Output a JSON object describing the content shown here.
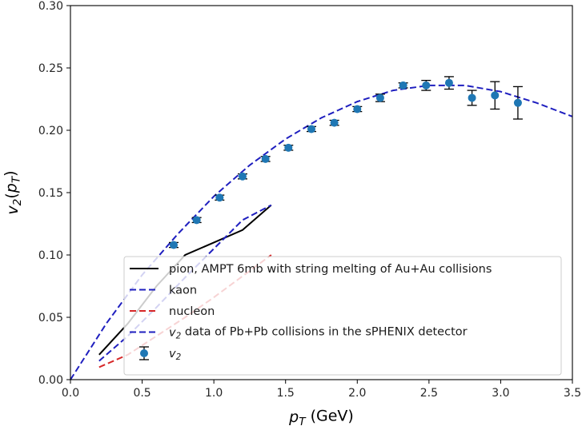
{
  "chart_data": {
    "type": "line",
    "xlabel": "p_T (GeV)",
    "ylabel": "v_2(p_T)",
    "xlim": [
      0.0,
      3.5
    ],
    "ylim": [
      0.0,
      0.3
    ],
    "xticks": [
      "0.0",
      "0.5",
      "1.0",
      "1.5",
      "2.0",
      "2.5",
      "3.0",
      "3.5"
    ],
    "yticks": [
      "0.00",
      "0.05",
      "0.10",
      "0.15",
      "0.20",
      "0.25",
      "0.30"
    ],
    "grid": false,
    "legend_position": "lower-right",
    "series": [
      {
        "name": "pion, AMPT 6mb with string melting of Au+Au collisions",
        "style": "solid",
        "color": "#000000",
        "x": [
          0.2,
          0.4,
          0.6,
          0.8,
          1.0,
          1.2,
          1.4
        ],
        "y": [
          0.02,
          0.045,
          0.075,
          0.1,
          0.11,
          0.12,
          0.14
        ]
      },
      {
        "name": "kaon",
        "style": "dashed",
        "color": "#1f1fbf",
        "x": [
          0.2,
          0.4,
          0.6,
          0.8,
          1.0,
          1.2,
          1.4
        ],
        "y": [
          0.015,
          0.035,
          0.058,
          0.082,
          0.105,
          0.128,
          0.14
        ]
      },
      {
        "name": "nucleon",
        "style": "dashed",
        "color": "#d62728",
        "x": [
          0.2,
          0.4,
          0.6,
          0.8,
          1.0,
          1.2,
          1.4
        ],
        "y": [
          0.01,
          0.02,
          0.035,
          0.05,
          0.066,
          0.083,
          0.1
        ]
      },
      {
        "name": "v_2 data of Pb+Pb collisions in the sPHENIX detector",
        "style": "dashed",
        "color": "#1f1fbf",
        "x": [
          0.0,
          0.25,
          0.5,
          0.75,
          1.0,
          1.25,
          1.5,
          1.75,
          2.0,
          2.25,
          2.5,
          2.75,
          3.0,
          3.25,
          3.5
        ],
        "y": [
          0.0,
          0.045,
          0.084,
          0.117,
          0.147,
          0.172,
          0.193,
          0.21,
          0.223,
          0.232,
          0.236,
          0.236,
          0.231,
          0.222,
          0.211
        ]
      },
      {
        "name": "v_2",
        "style": "errorbar",
        "color": "#1f77b4",
        "x": [
          0.72,
          0.88,
          1.04,
          1.2,
          1.36,
          1.52,
          1.68,
          1.84,
          2.0,
          2.16,
          2.32,
          2.48,
          2.64,
          2.8,
          2.96,
          3.12
        ],
        "y": [
          0.108,
          0.128,
          0.146,
          0.163,
          0.177,
          0.186,
          0.201,
          0.206,
          0.217,
          0.226,
          0.236,
          0.236,
          0.238,
          0.226,
          0.228,
          0.222
        ],
        "yerr": [
          0.002,
          0.002,
          0.002,
          0.002,
          0.002,
          0.002,
          0.002,
          0.002,
          0.002,
          0.003,
          0.002,
          0.004,
          0.005,
          0.006,
          0.011,
          0.013
        ]
      }
    ]
  }
}
